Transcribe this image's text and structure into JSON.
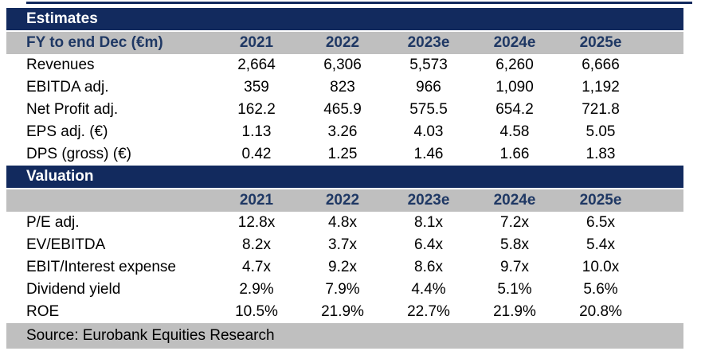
{
  "colors": {
    "navy_band": "#122A5E",
    "navy_text": "#1F3864",
    "gray_band": "#BFBFBF",
    "body_text": "#000000"
  },
  "estimates": {
    "section_title": "Estimates",
    "header_label": "FY to end Dec (€m)",
    "columns": [
      "2021",
      "2022",
      "2023e",
      "2024e",
      "2025e"
    ],
    "rows": [
      {
        "label": "Revenues",
        "values": [
          "2,664",
          "6,306",
          "5,573",
          "6,260",
          "6,666"
        ]
      },
      {
        "label": "EBITDA adj.",
        "values": [
          "359",
          "823",
          "966",
          "1,090",
          "1,192"
        ]
      },
      {
        "label": "Net Profit adj.",
        "values": [
          "162.2",
          "465.9",
          "575.5",
          "654.2",
          "721.8"
        ]
      },
      {
        "label": "EPS adj. (€)",
        "values": [
          "1.13",
          "3.26",
          "4.03",
          "4.58",
          "5.05"
        ]
      },
      {
        "label": "DPS (gross) (€)",
        "values": [
          "0.42",
          "1.25",
          "1.46",
          "1.66",
          "1.83"
        ]
      }
    ]
  },
  "valuation": {
    "section_title": "Valuation",
    "header_label": "",
    "columns": [
      "2021",
      "2022",
      "2023e",
      "2024e",
      "2025e"
    ],
    "rows": [
      {
        "label": "P/E adj.",
        "values": [
          "12.8x",
          "4.8x",
          "8.1x",
          "7.2x",
          "6.5x"
        ]
      },
      {
        "label": "EV/EBITDA",
        "values": [
          "8.2x",
          "3.7x",
          "6.4x",
          "5.8x",
          "5.4x"
        ]
      },
      {
        "label": "EBIT/Interest expense",
        "values": [
          "4.7x",
          "9.2x",
          "8.6x",
          "9.7x",
          "10.0x"
        ]
      },
      {
        "label": "Dividend yield",
        "values": [
          "2.9%",
          "7.9%",
          "4.4%",
          "5.1%",
          "5.6%"
        ]
      },
      {
        "label": "ROE",
        "values": [
          "10.5%",
          "21.9%",
          "22.7%",
          "21.9%",
          "20.8%"
        ]
      }
    ]
  },
  "footer": {
    "source": "Source: Eurobank Equities Research"
  }
}
